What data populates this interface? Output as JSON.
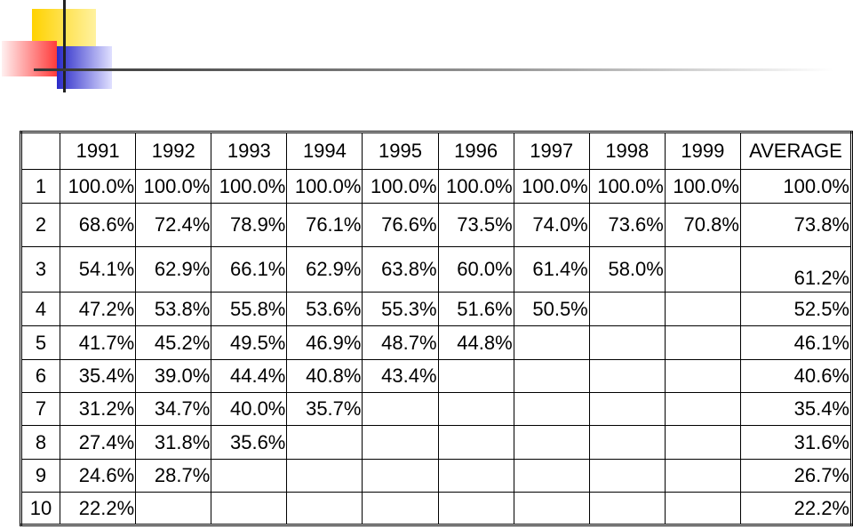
{
  "table": {
    "header": [
      "1991",
      "1992",
      "1993",
      "1994",
      "1995",
      "1996",
      "1997",
      "1998",
      "1999",
      "AVERAGE"
    ],
    "rows": [
      {
        "label": "1",
        "values": [
          "100.0%",
          "100.0%",
          "100.0%",
          "100.0%",
          "100.0%",
          "100.0%",
          "100.0%",
          "100.0%",
          "100.0%"
        ],
        "average": "100.0%"
      },
      {
        "label": "2",
        "values": [
          "68.6%",
          "72.4%",
          "78.9%",
          "76.1%",
          "76.6%",
          "73.5%",
          "74.0%",
          "73.6%",
          "70.8%"
        ],
        "average": "73.8%"
      },
      {
        "label": "3",
        "values": [
          "54.1%",
          "62.9%",
          "66.1%",
          "62.9%",
          "63.8%",
          "60.0%",
          "61.4%",
          "58.0%"
        ],
        "average": "61.2%"
      },
      {
        "label": "4",
        "values": [
          "47.2%",
          "53.8%",
          "55.8%",
          "53.6%",
          "55.3%",
          "51.6%",
          "50.5%"
        ],
        "average": "52.5%"
      },
      {
        "label": "5",
        "values": [
          "41.7%",
          "45.2%",
          "49.5%",
          "46.9%",
          "48.7%",
          "44.8%"
        ],
        "average": "46.1%"
      },
      {
        "label": "6",
        "values": [
          "35.4%",
          "39.0%",
          "44.4%",
          "40.8%",
          "43.4%"
        ],
        "average": "40.6%"
      },
      {
        "label": "7",
        "values": [
          "31.2%",
          "34.7%",
          "40.0%",
          "35.7%"
        ],
        "average": "35.4%"
      },
      {
        "label": "8",
        "values": [
          "27.4%",
          "31.8%",
          "35.6%"
        ],
        "average": "31.6%"
      },
      {
        "label": "9",
        "values": [
          "24.6%",
          "28.7%"
        ],
        "average": "26.7%"
      },
      {
        "label": "10",
        "values": [
          "22.2%"
        ],
        "average": "22.2%"
      }
    ]
  }
}
